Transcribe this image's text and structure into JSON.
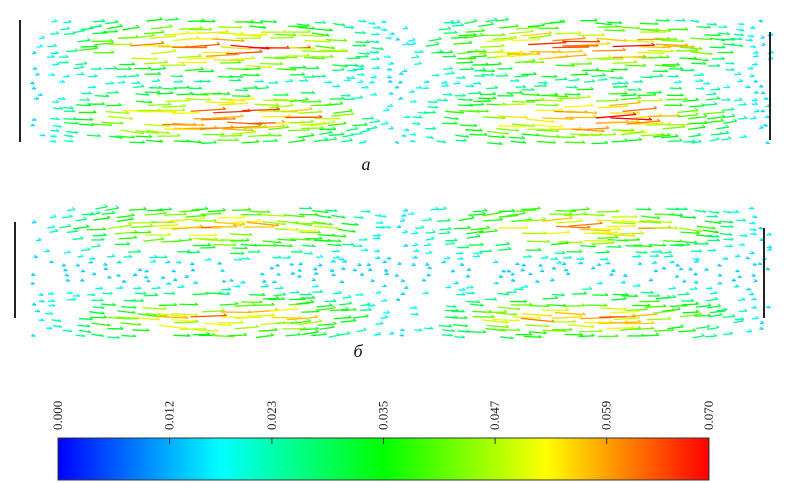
{
  "panels": [
    {
      "label": "а"
    },
    {
      "label": "б"
    }
  ],
  "colorbar": {
    "lim": [
      0,
      0.07
    ],
    "ticks": [
      {
        "value": 0,
        "label": "0.000"
      },
      {
        "value": 0.012,
        "label": "0.012"
      },
      {
        "value": 0.023,
        "label": "0.023"
      },
      {
        "value": 0.035,
        "label": "0.035"
      },
      {
        "value": 0.047,
        "label": "0.047"
      },
      {
        "value": 0.059,
        "label": "0.059"
      },
      {
        "value": 0.07,
        "label": "0.070"
      }
    ]
  }
}
